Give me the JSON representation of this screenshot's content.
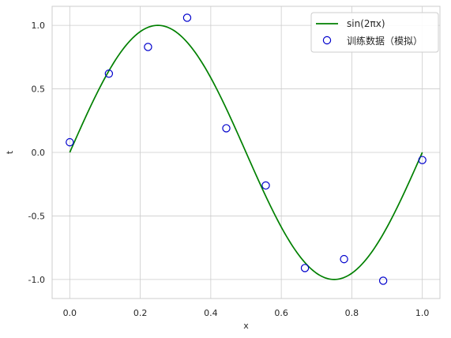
{
  "chart_data": {
    "type": "line",
    "title": "",
    "xlabel": "x",
    "ylabel": "t",
    "xlim": [
      -0.05,
      1.05
    ],
    "ylim": [
      -1.15,
      1.15
    ],
    "xticks": [
      0.0,
      0.2,
      0.4,
      0.6,
      0.8,
      1.0
    ],
    "xtick_labels": [
      "0.0",
      "0.2",
      "0.4",
      "0.6",
      "0.8",
      "1.0"
    ],
    "yticks": [
      1.0,
      0.5,
      0.0,
      -0.5,
      -1.0
    ],
    "ytick_labels": [
      "1.0",
      "0.5",
      "0.0",
      "-0.5",
      "-1.0"
    ],
    "grid": true,
    "legend_position": "top-right",
    "series": [
      {
        "name": "sin(2πx)",
        "kind": "line",
        "color": "#008000",
        "function": "sin(2*pi*x)",
        "x_range": [
          0,
          1
        ]
      },
      {
        "name": "训练数据（模拟）",
        "kind": "scatter",
        "color": "#0000cc",
        "marker": "open-circle",
        "x": [
          0.0,
          0.111,
          0.222,
          0.333,
          0.444,
          0.556,
          0.667,
          0.778,
          0.889,
          1.0
        ],
        "y": [
          0.08,
          0.62,
          0.83,
          1.06,
          0.19,
          -0.26,
          -0.91,
          -0.84,
          -1.01,
          -0.06
        ]
      }
    ]
  }
}
